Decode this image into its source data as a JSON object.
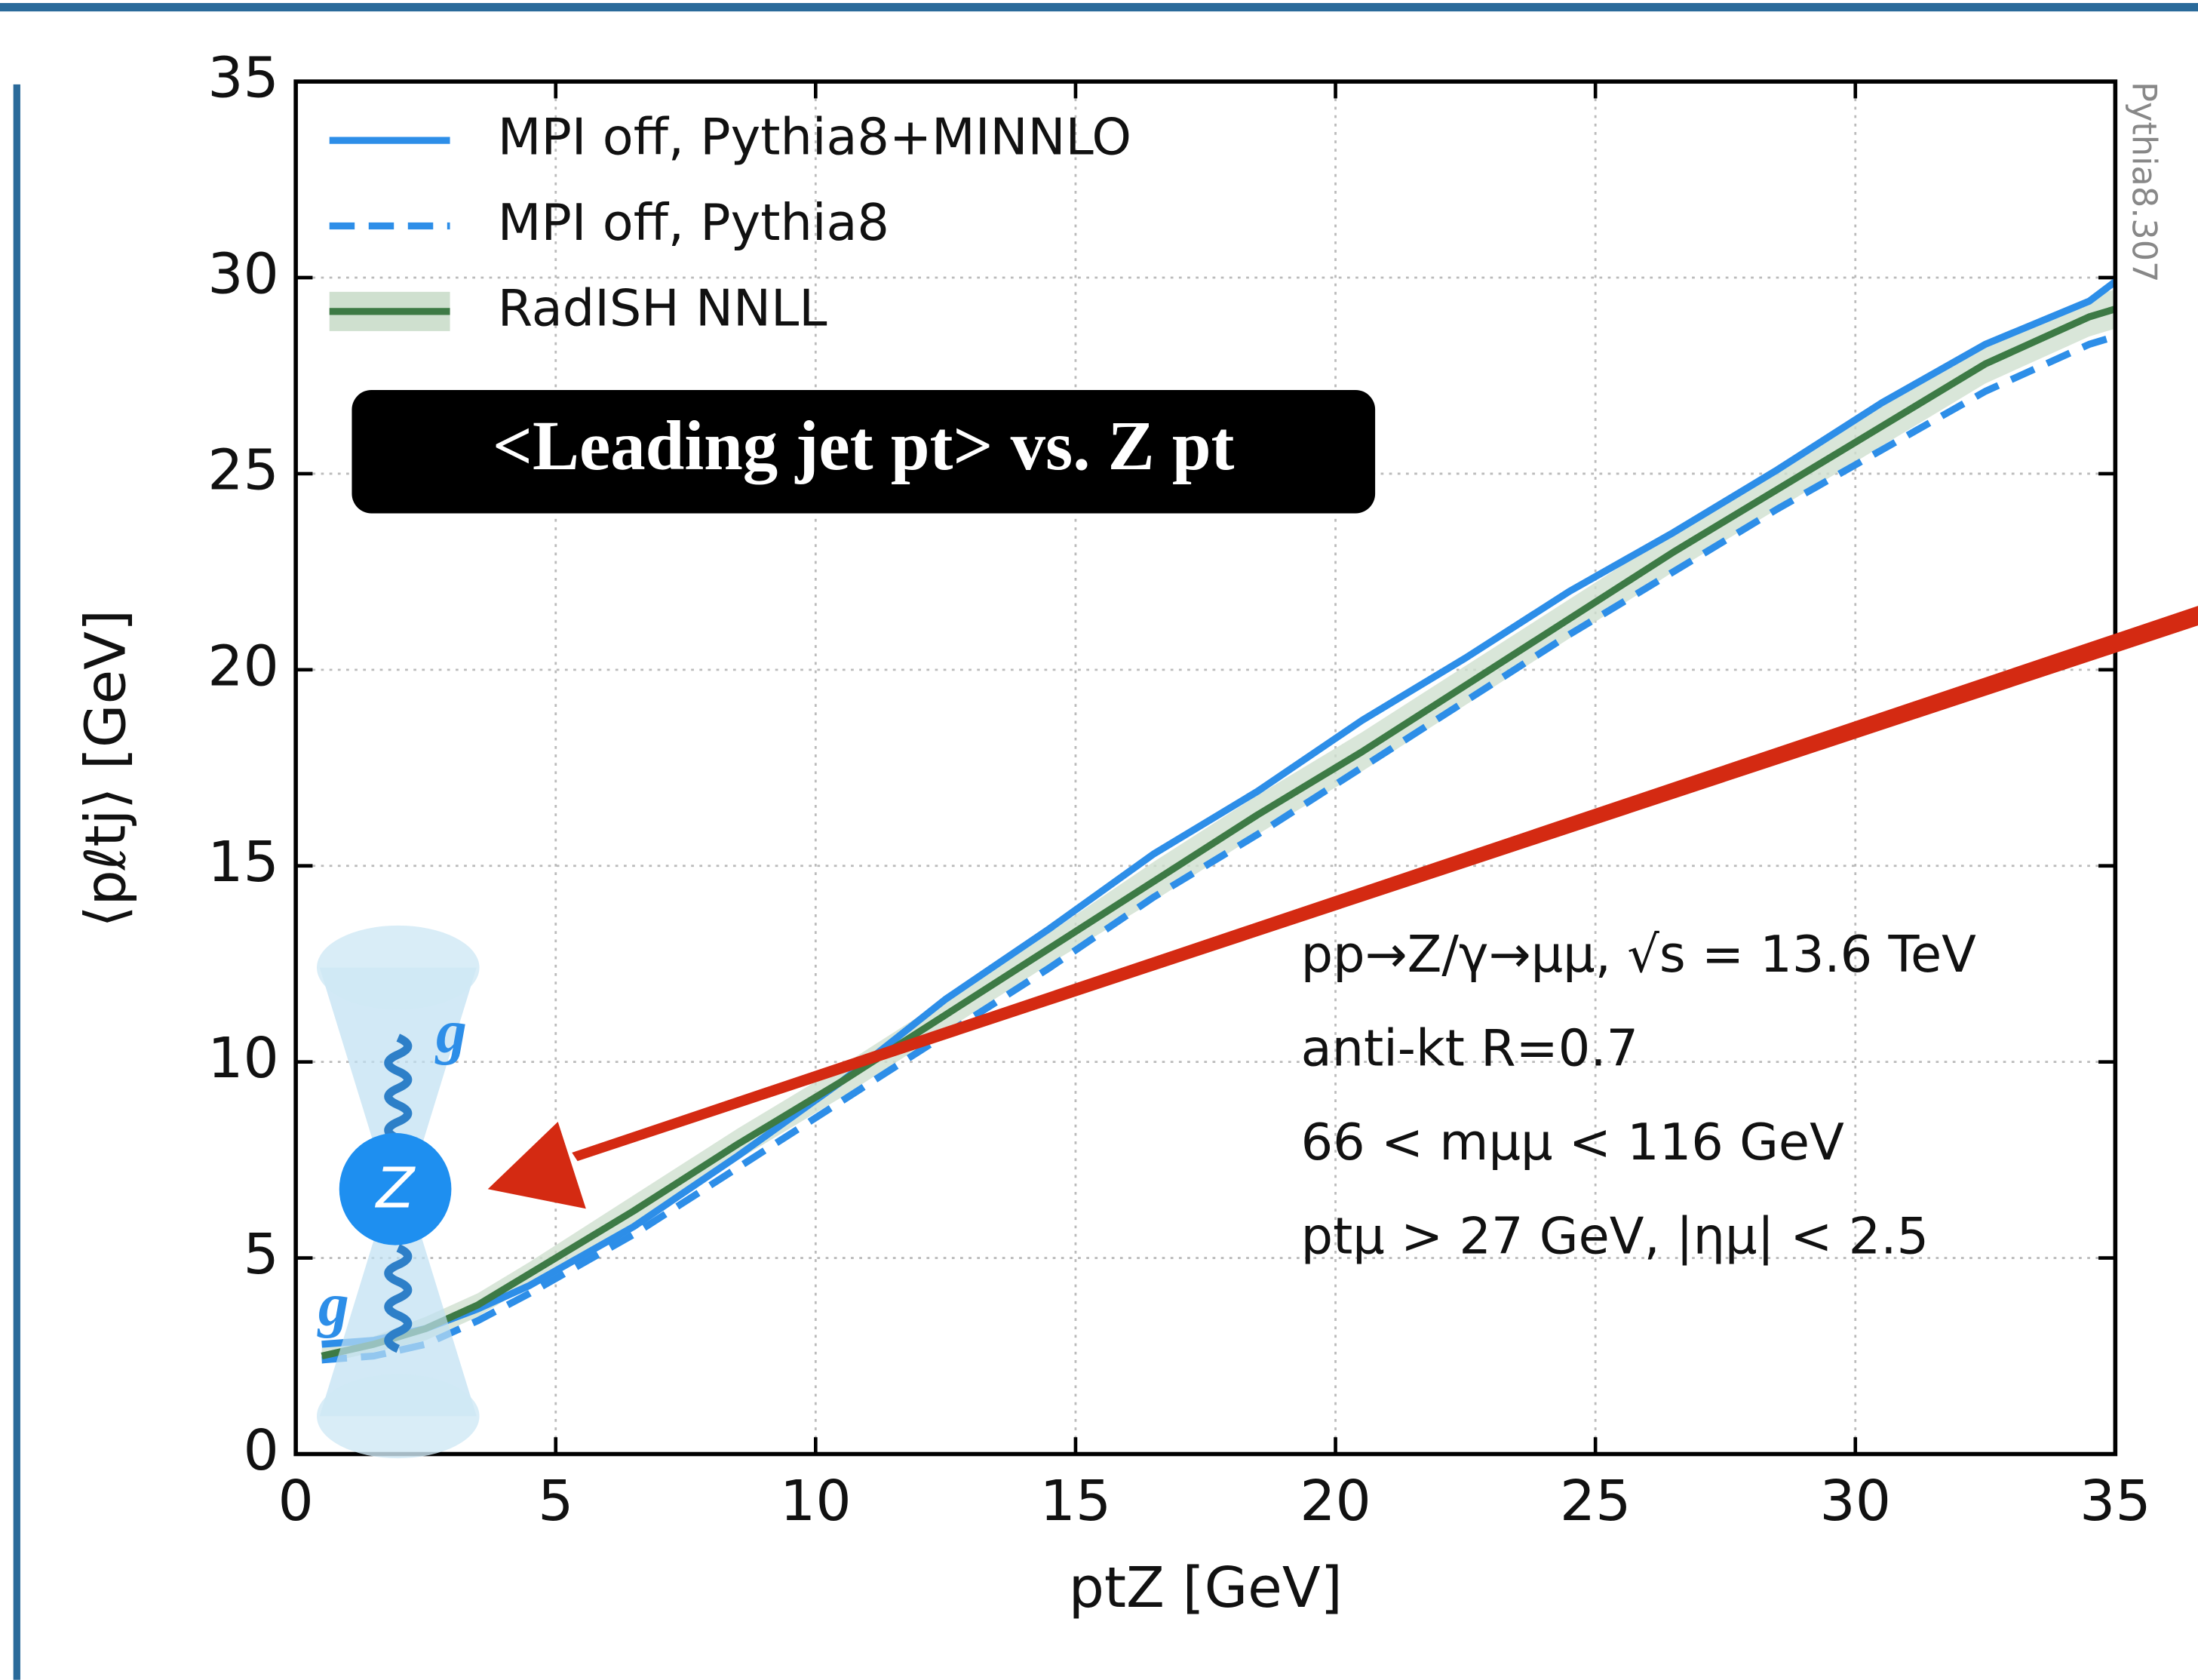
{
  "chart_data": {
    "type": "line",
    "title": "<Leading jet pt> vs. Z pt",
    "xlabel": "ptZ [GeV]",
    "ylabel": "⟨pℓtj⟩ [GeV]",
    "x": [
      0.5,
      1.5,
      2.5,
      3.5,
      4.5,
      6.5,
      8.5,
      10.5,
      12.5,
      14.5,
      16.5,
      18.5,
      20.5,
      22.5,
      24.5,
      26.5,
      28.5,
      30.5,
      32.5,
      34.5,
      35
    ],
    "series": [
      {
        "name": "MPI off, Pythia8+MINNLO",
        "color": "#2d8ee8",
        "dash": false,
        "values": [
          2.8,
          2.9,
          3.2,
          3.7,
          4.3,
          5.8,
          7.6,
          9.5,
          11.6,
          13.4,
          15.3,
          16.9,
          18.7,
          20.3,
          22.0,
          23.5,
          25.1,
          26.8,
          28.3,
          29.4,
          29.9
        ]
      },
      {
        "name": "MPI off, Pythia8",
        "color": "#2d8ee8",
        "dash": true,
        "values": [
          2.4,
          2.5,
          2.8,
          3.4,
          4.1,
          5.6,
          7.3,
          9.0,
          10.7,
          12.4,
          14.2,
          15.8,
          17.5,
          19.2,
          20.9,
          22.5,
          24.1,
          25.6,
          27.1,
          28.3,
          28.5
        ]
      },
      {
        "name": "RadISH NNLL",
        "color": "#3d7a45",
        "dash": false,
        "band_color": "#cfe0cf",
        "values": [
          2.5,
          2.8,
          3.2,
          3.8,
          4.6,
          6.2,
          7.9,
          9.5,
          11.2,
          12.9,
          14.6,
          16.3,
          17.9,
          19.6,
          21.3,
          23.0,
          24.6,
          26.2,
          27.8,
          29.0,
          29.2
        ],
        "errors": [
          0.2,
          0.2,
          0.3,
          0.3,
          0.3,
          0.4,
          0.4,
          0.4,
          0.4,
          0.4,
          0.5,
          0.5,
          0.5,
          0.5,
          0.5,
          0.5,
          0.5,
          0.5,
          0.5,
          0.5,
          0.5
        ]
      }
    ],
    "xlim": [
      0,
      35
    ],
    "ylim": [
      0,
      35
    ],
    "xticks": [
      0,
      5,
      10,
      15,
      20,
      25,
      30,
      35
    ],
    "yticks": [
      0,
      5,
      10,
      15,
      20,
      25,
      30,
      35
    ],
    "grid": true,
    "legend": "upper left",
    "annotations": [
      "pp→Z/γ→μμ, √s = 13.6 TeV",
      "anti-kt R=0.7",
      "66 < mμμ < 116 GeV",
      "ptμ > 27 GeV, |ημ| < 2.5"
    ],
    "generator_label": "Pythia8.307"
  },
  "diagram": {
    "boson": "Z",
    "gluons": [
      "g",
      "g"
    ]
  }
}
